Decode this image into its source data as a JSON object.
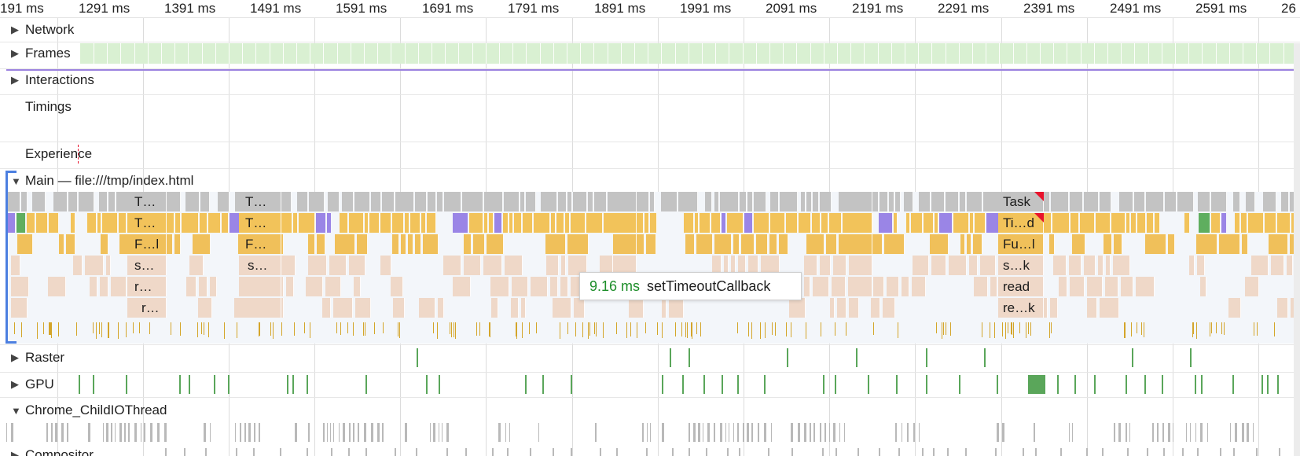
{
  "ruler": {
    "ticks": [
      "191 ms",
      "1291 ms",
      "1391 ms",
      "1491 ms",
      "1591 ms",
      "1691 ms",
      "1791 ms",
      "1891 ms",
      "1991 ms",
      "2091 ms",
      "2191 ms",
      "2291 ms",
      "2391 ms",
      "2491 ms",
      "2591 ms",
      "26"
    ]
  },
  "tracks": {
    "network": "Network",
    "frames": "Frames",
    "interactions": "Interactions",
    "timings": "Timings",
    "experience": "Experience",
    "main": "Main — file:///tmp/index.html",
    "raster": "Raster",
    "gpu": "GPU",
    "io_thread": "Chrome_ChildIOThread",
    "compositor": "Compositor"
  },
  "flame_labels": {
    "g1": [
      "T…",
      "T…",
      "F…l",
      "s…",
      "r…",
      "r…"
    ],
    "g2": [
      "T…",
      "T…",
      "F…",
      "s…"
    ],
    "g3": [
      "Task",
      "Ti…d",
      "Fu…l",
      "s…k",
      "read",
      "re…k"
    ]
  },
  "tooltip": {
    "duration": "9.16 ms",
    "name": "setTimeoutCallback"
  },
  "colors": {
    "task": "#c3c3c3",
    "timer": "#f2c35a",
    "function": "#f0c05a",
    "script": "#efd8c8",
    "layout": "#9a85e6",
    "paint": "#5fae5f",
    "frames": "#d9f0d2",
    "long_task_marker": "#e8132c",
    "duration_text": "#1e8e2a"
  }
}
